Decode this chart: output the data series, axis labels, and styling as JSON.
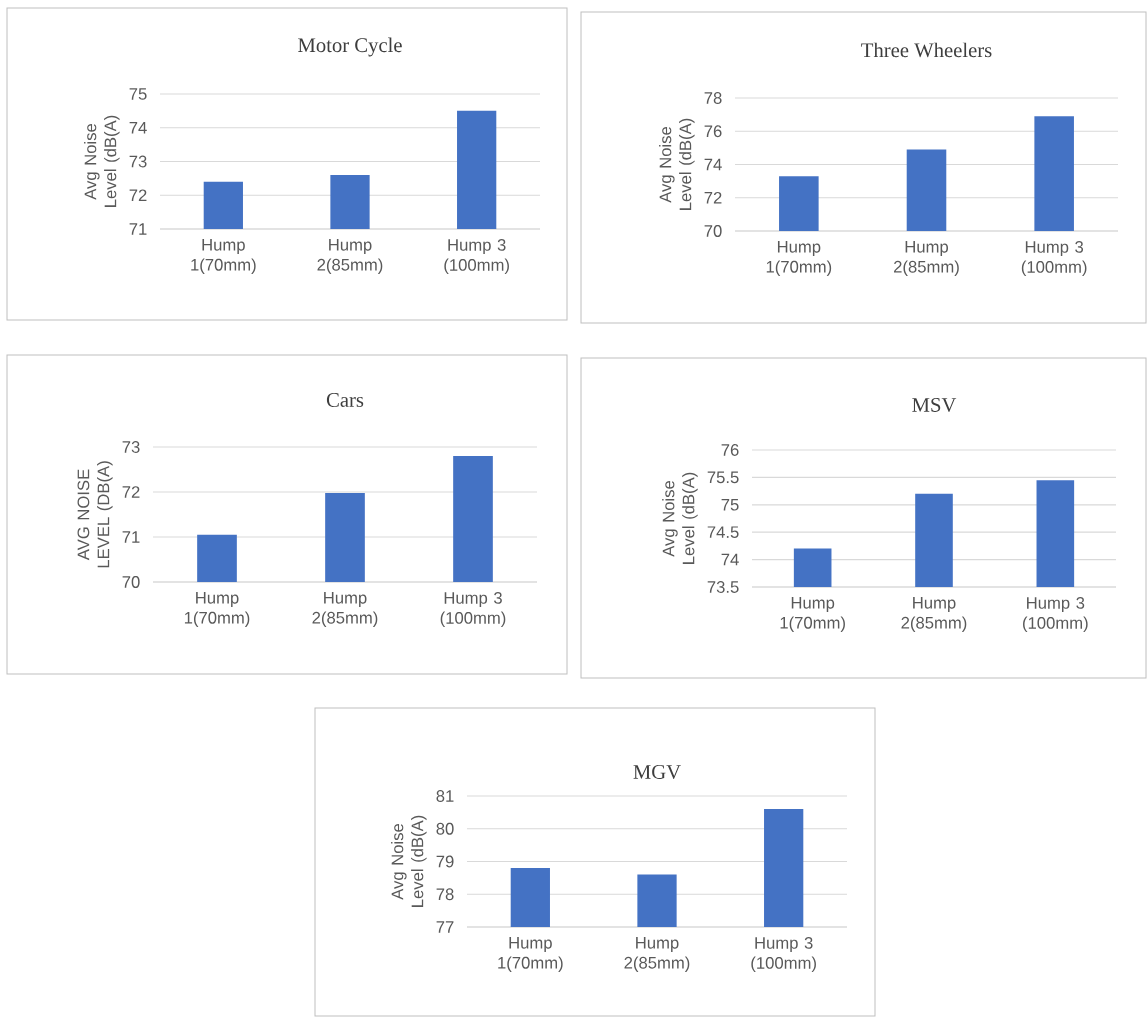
{
  "chart_data": [
    {
      "type": "bar",
      "title": "Motor Cycle",
      "ylabel": "Avg Noise Level (dB(A)",
      "categories": [
        "Hump 1(70mm)",
        "Hump 2(85mm)",
        "Hump 3 (100mm)"
      ],
      "values": [
        72.4,
        72.6,
        74.5
      ],
      "color": "#4472c4",
      "ylim": [
        71,
        75
      ],
      "yticks": [
        71,
        72,
        73,
        74,
        75
      ],
      "grid": "y"
    },
    {
      "type": "bar",
      "title": "Three Wheelers",
      "ylabel": "Avg Noise Level (dB(A)",
      "categories": [
        "Hump 1(70mm)",
        "Hump 2(85mm)",
        "Hump 3 (100mm)"
      ],
      "values": [
        73.3,
        74.9,
        76.9
      ],
      "color": "#4472c4",
      "ylim": [
        70,
        78
      ],
      "yticks": [
        70,
        72,
        74,
        76,
        78
      ],
      "grid": "y"
    },
    {
      "type": "bar",
      "title": "Cars",
      "ylabel": "AVG NOISE LEVEL (DB(A)",
      "categories": [
        "Hump 1(70mm)",
        "Hump 2(85mm)",
        "Hump 3 (100mm)"
      ],
      "values": [
        71.05,
        71.98,
        72.8
      ],
      "color": "#4472c4",
      "ylim": [
        70,
        73
      ],
      "yticks": [
        70,
        71,
        72,
        73
      ],
      "grid": "y"
    },
    {
      "type": "bar",
      "title": "MSV",
      "ylabel": "Avg Noise Level (dB(A)",
      "categories": [
        "Hump 1(70mm)",
        "Hump 2(85mm)",
        "Hump 3 (100mm)"
      ],
      "values": [
        74.2,
        75.2,
        75.45
      ],
      "color": "#4472c4",
      "ylim": [
        73.5,
        76
      ],
      "yticks": [
        73.5,
        74,
        74.5,
        75,
        75.5,
        76
      ],
      "grid": "y"
    },
    {
      "type": "bar",
      "title": "MGV",
      "ylabel": "Avg Noise Level (dB(A)",
      "categories": [
        "Hump 1(70mm)",
        "Hump 2(85mm)",
        "Hump 3 (100mm)"
      ],
      "values": [
        78.8,
        78.6,
        80.6
      ],
      "color": "#4472c4",
      "ylim": [
        77,
        81
      ],
      "yticks": [
        77,
        78,
        79,
        80,
        81
      ],
      "grid": "y"
    }
  ]
}
